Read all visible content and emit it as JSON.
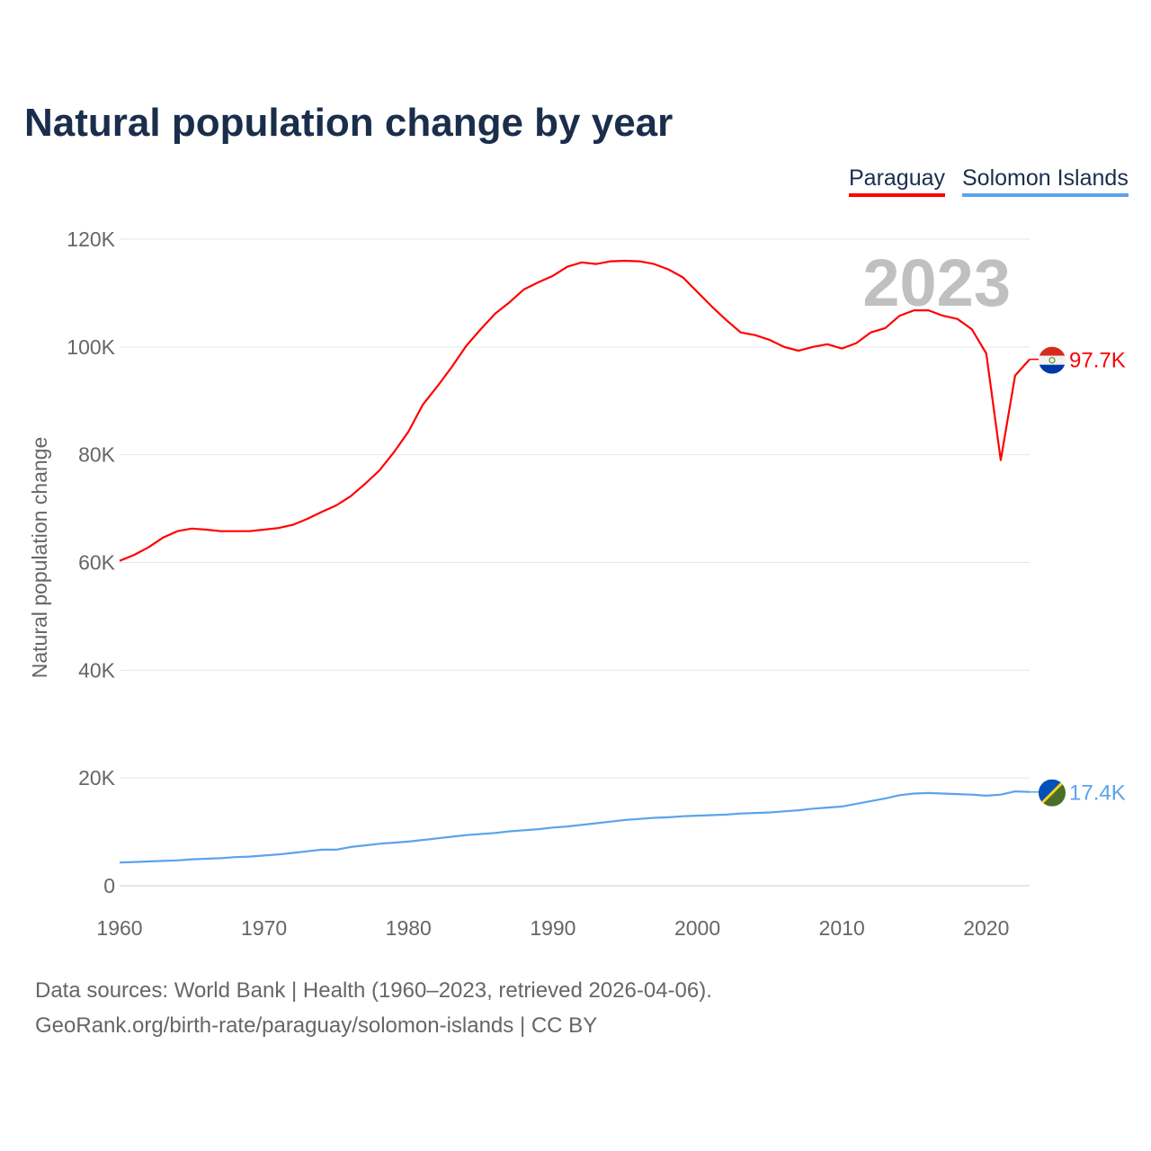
{
  "chart_data": {
    "type": "line",
    "title": "Natural population change by year",
    "ylabel": "Natural population change",
    "xlabel": "",
    "xlim": [
      1960,
      2023
    ],
    "ylim": [
      0,
      120000
    ],
    "x_ticks": [
      "1960",
      "1970",
      "1980",
      "1990",
      "2000",
      "2010",
      "2020"
    ],
    "y_ticks": [
      {
        "v": 0,
        "label": "0"
      },
      {
        "v": 20000,
        "label": "20K"
      },
      {
        "v": 40000,
        "label": "40K"
      },
      {
        "v": 60000,
        "label": "60K"
      },
      {
        "v": 80000,
        "label": "80K"
      },
      {
        "v": 100000,
        "label": "100K"
      },
      {
        "v": 120000,
        "label": "120K"
      }
    ],
    "grid": true,
    "legend_position": "top-right",
    "year_watermark": "2023",
    "x_start": 1960,
    "series": [
      {
        "name": "Paraguay",
        "color": "#ff0000",
        "end_label": "97.7K",
        "flag": "paraguay-flag",
        "values": [
          60.3,
          61.4,
          62.8,
          64.6,
          65.8,
          66.3,
          66.1,
          65.8,
          65.8,
          65.8,
          66.1,
          66.4,
          67.0,
          68.1,
          69.4,
          70.6,
          72.3,
          74.6,
          77.1,
          80.5,
          84.3,
          89.3,
          92.7,
          96.3,
          100.2,
          103.3,
          106.2,
          108.3,
          110.7,
          112.0,
          113.2,
          114.9,
          115.7,
          115.4,
          115.9,
          116.0,
          115.9,
          115.4,
          114.4,
          112.9,
          110.2,
          107.5,
          105.0,
          102.7,
          102.2,
          101.3,
          100.0,
          99.3,
          100.0,
          100.5,
          99.7,
          100.7,
          102.7,
          103.5,
          105.8,
          106.8,
          106.8,
          105.8,
          105.2,
          103.3,
          98.8,
          79.0,
          94.7,
          97.7
        ]
      },
      {
        "name": "Solomon Islands",
        "color": "#5ba3ea",
        "end_label": "17.4K",
        "flag": "solomon-islands-flag",
        "values": [
          4.3,
          4.4,
          4.5,
          4.6,
          4.7,
          4.9,
          5.0,
          5.1,
          5.3,
          5.4,
          5.6,
          5.8,
          6.1,
          6.4,
          6.7,
          6.7,
          7.2,
          7.5,
          7.8,
          8.0,
          8.2,
          8.5,
          8.8,
          9.1,
          9.4,
          9.6,
          9.8,
          10.1,
          10.3,
          10.5,
          10.8,
          11.0,
          11.3,
          11.6,
          11.9,
          12.2,
          12.4,
          12.6,
          12.7,
          12.9,
          13.0,
          13.1,
          13.2,
          13.4,
          13.5,
          13.6,
          13.8,
          14.0,
          14.3,
          14.5,
          14.7,
          15.2,
          15.7,
          16.2,
          16.8,
          17.1,
          17.2,
          17.1,
          17.0,
          16.9,
          16.7,
          16.9,
          17.5,
          17.4
        ]
      }
    ],
    "value_unit": "thousands"
  },
  "footer": {
    "line1": "Data sources: World Bank | Health (1960–2023, retrieved 2026-04-06).",
    "line2": "GeoRank.org/birth-rate/paraguay/solomon-islands | CC BY"
  }
}
